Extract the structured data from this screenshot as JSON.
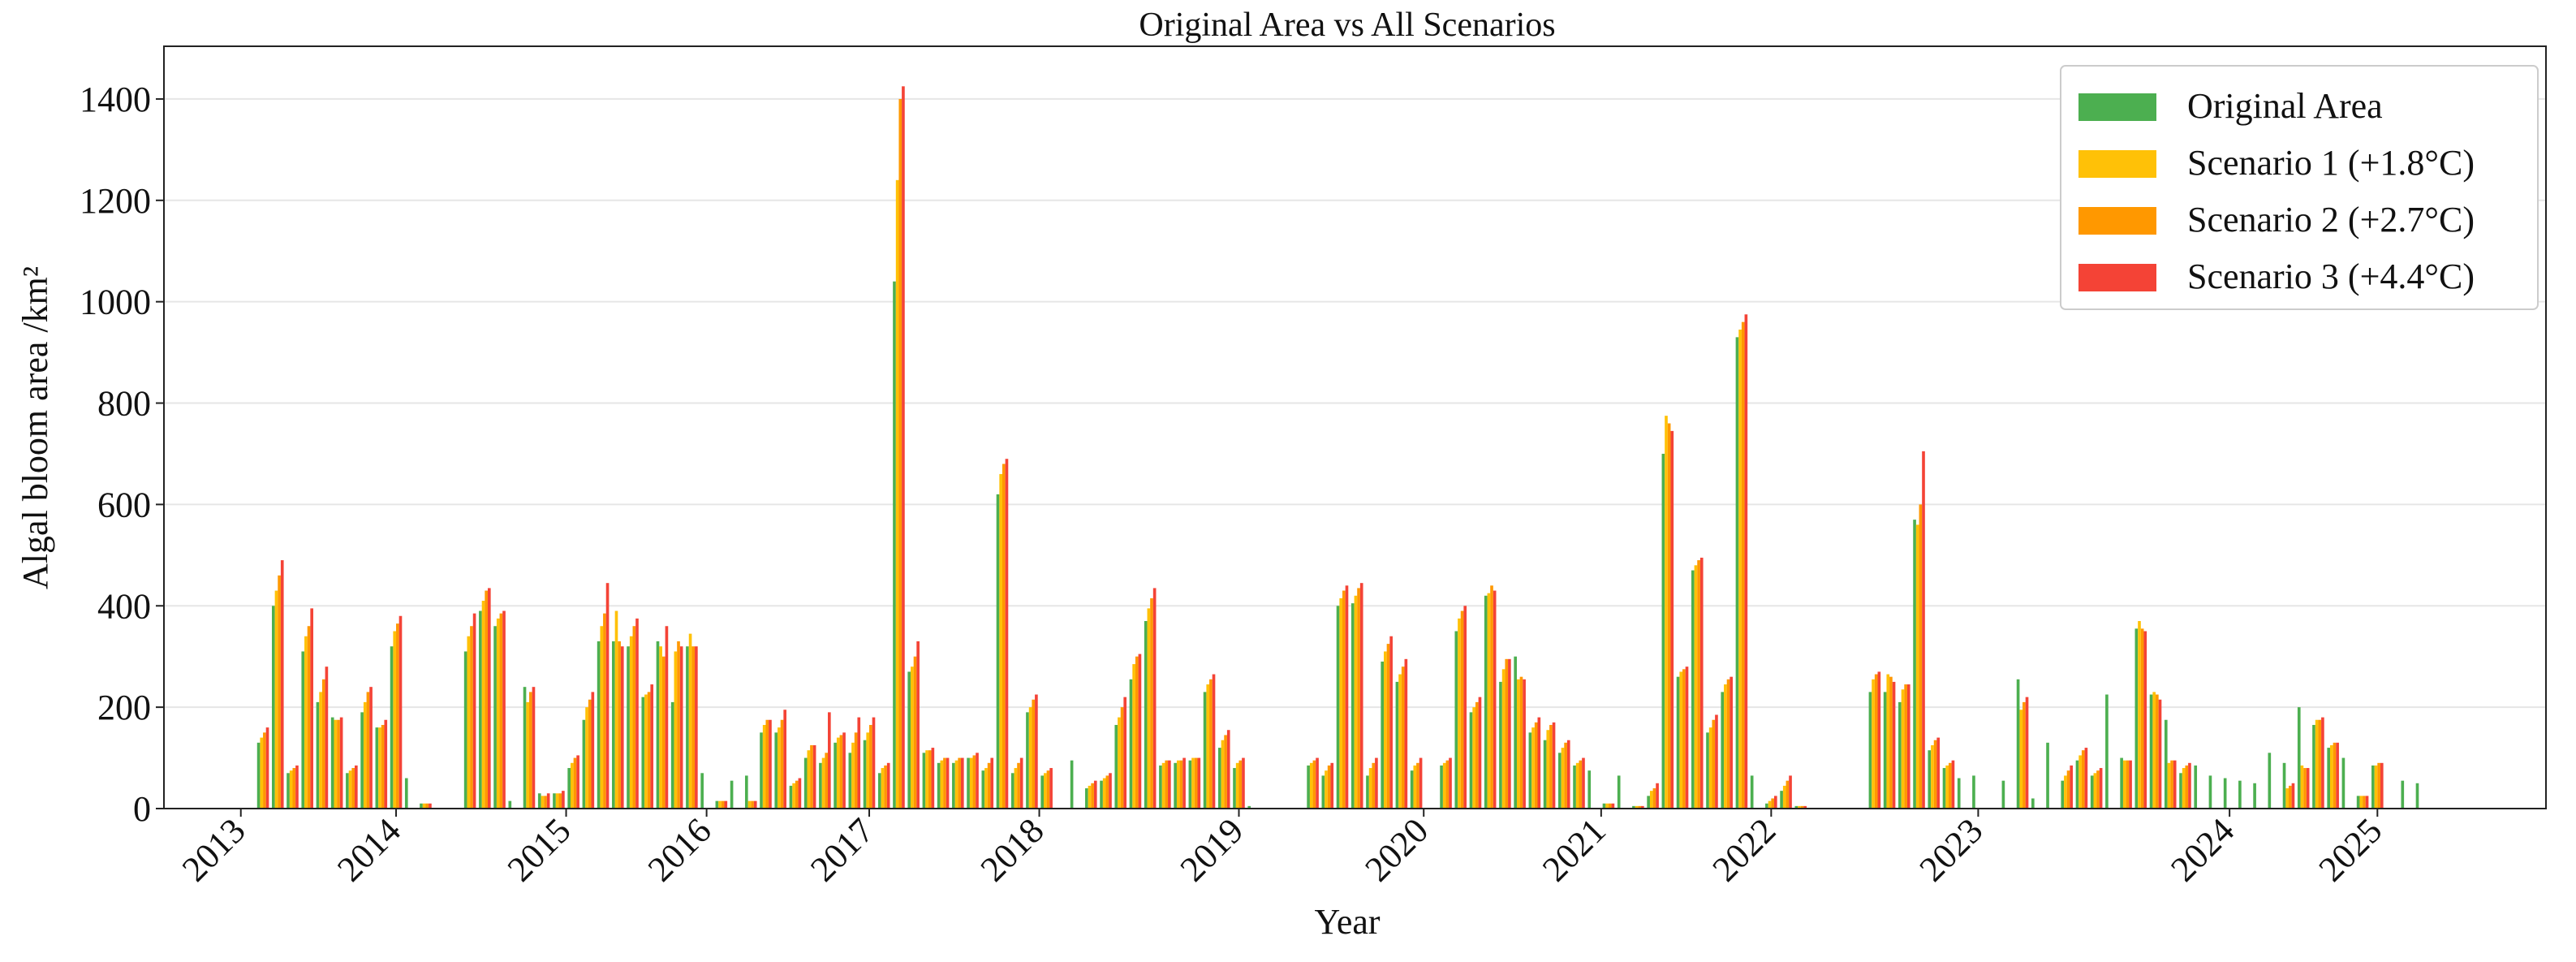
{
  "chart_data": {
    "type": "bar",
    "title": "Original Area vs All Scenarios",
    "x_label": "Year",
    "y_label": "Algal bloom area /km²",
    "categories": [
      null,
      null,
      null,
      null,
      null,
      null,
      null,
      null,
      null,
      null,
      null,
      null,
      null,
      null,
      null,
      null,
      null,
      null,
      null,
      null,
      null,
      null,
      null,
      null,
      null,
      null,
      null,
      null,
      null,
      null,
      null,
      null,
      null,
      null,
      null,
      null,
      null,
      null,
      null,
      null,
      null,
      null,
      null,
      null,
      null,
      null,
      null,
      null,
      null,
      null,
      null,
      null,
      null,
      null,
      null,
      null,
      null,
      null,
      null,
      null,
      null,
      null,
      null,
      null,
      null,
      null,
      null,
      null,
      null,
      null,
      null,
      null,
      null,
      null,
      null,
      null,
      null,
      null,
      null,
      null,
      null,
      null,
      null,
      null,
      null,
      null,
      null,
      null,
      null,
      null,
      null,
      null,
      null,
      null,
      null,
      null,
      null,
      null,
      null,
      null,
      null,
      null,
      null,
      null,
      null,
      null,
      null,
      null,
      null,
      null,
      null,
      null,
      null,
      null,
      null,
      null,
      null,
      null,
      null,
      null,
      null,
      null,
      null,
      null,
      null,
      null,
      null,
      null,
      null,
      null,
      null,
      null,
      null,
      null,
      null,
      null,
      null,
      null,
      null,
      null,
      null,
      null,
      null,
      null,
      null,
      null,
      null,
      null
    ],
    "series": [
      {
        "name": "Original Area",
        "color": "#4caf50",
        "values": [
          130,
          400,
          70,
          310,
          210,
          180,
          70,
          190,
          160,
          320,
          60,
          10,
          0,
          0,
          310,
          390,
          360,
          15,
          240,
          30,
          30,
          80,
          175,
          330,
          330,
          320,
          220,
          330,
          210,
          320,
          70,
          15,
          55,
          65,
          150,
          150,
          45,
          100,
          90,
          130,
          110,
          135,
          70,
          1040,
          270,
          110,
          90,
          90,
          100,
          75,
          620,
          70,
          190,
          65,
          0,
          95,
          40,
          55,
          165,
          255,
          370,
          85,
          90,
          95,
          230,
          120,
          80,
          5,
          0,
          0,
          0,
          85,
          65,
          400,
          405,
          65,
          290,
          250,
          75,
          0,
          85,
          350,
          190,
          420,
          250,
          300,
          150,
          135,
          110,
          85,
          75,
          10,
          65,
          5,
          25,
          700,
          260,
          470,
          150,
          230,
          930,
          65,
          10,
          35,
          5,
          0,
          0,
          0,
          0,
          230,
          230,
          210,
          570,
          115,
          80,
          60,
          65,
          0,
          55,
          255,
          20,
          130,
          55,
          95,
          65,
          225,
          100,
          355,
          225,
          175,
          70,
          85,
          65,
          60,
          55,
          50,
          110,
          90,
          200,
          165,
          120,
          100,
          25,
          85,
          0,
          55,
          50,
          0
        ]
      },
      {
        "name": "Scenario 1 (+1.8°C)",
        "color": "#ffc107",
        "values": [
          140,
          430,
          75,
          340,
          230,
          175,
          75,
          210,
          160,
          350,
          0,
          10,
          0,
          0,
          340,
          410,
          375,
          0,
          210,
          25,
          30,
          90,
          200,
          360,
          390,
          340,
          225,
          320,
          310,
          345,
          0,
          15,
          0,
          15,
          165,
          160,
          50,
          115,
          100,
          140,
          130,
          150,
          80,
          1240,
          280,
          115,
          95,
          95,
          100,
          80,
          660,
          80,
          200,
          70,
          0,
          0,
          45,
          60,
          180,
          285,
          395,
          90,
          95,
          100,
          245,
          135,
          90,
          0,
          0,
          0,
          0,
          90,
          75,
          415,
          420,
          80,
          310,
          265,
          85,
          0,
          90,
          375,
          200,
          425,
          275,
          255,
          160,
          155,
          120,
          90,
          0,
          10,
          0,
          5,
          35,
          775,
          270,
          480,
          160,
          245,
          945,
          0,
          15,
          45,
          5,
          0,
          0,
          0,
          0,
          255,
          265,
          235,
          560,
          125,
          85,
          0,
          0,
          0,
          0,
          195,
          0,
          0,
          65,
          105,
          70,
          0,
          95,
          370,
          230,
          90,
          80,
          0,
          0,
          0,
          0,
          0,
          0,
          40,
          85,
          175,
          125,
          0,
          25,
          85,
          0,
          0,
          0,
          0
        ]
      },
      {
        "name": "Scenario 2 (+2.7°C)",
        "color": "#ff9800",
        "values": [
          150,
          460,
          80,
          360,
          255,
          175,
          80,
          230,
          165,
          365,
          0,
          10,
          0,
          0,
          360,
          430,
          385,
          0,
          230,
          25,
          30,
          100,
          215,
          385,
          330,
          360,
          230,
          300,
          330,
          320,
          0,
          15,
          0,
          15,
          175,
          175,
          55,
          125,
          110,
          145,
          150,
          165,
          85,
          1400,
          300,
          115,
          100,
          100,
          105,
          90,
          680,
          90,
          215,
          75,
          0,
          0,
          50,
          65,
          200,
          300,
          415,
          95,
          95,
          100,
          255,
          145,
          95,
          0,
          0,
          0,
          0,
          95,
          85,
          430,
          435,
          90,
          325,
          280,
          90,
          0,
          95,
          390,
          210,
          440,
          295,
          260,
          170,
          165,
          130,
          95,
          0,
          10,
          0,
          5,
          40,
          760,
          275,
          490,
          175,
          255,
          960,
          0,
          20,
          55,
          5,
          0,
          0,
          0,
          0,
          265,
          260,
          245,
          600,
          135,
          90,
          0,
          0,
          0,
          0,
          210,
          0,
          0,
          75,
          115,
          75,
          0,
          95,
          355,
          225,
          95,
          85,
          0,
          0,
          0,
          0,
          0,
          0,
          45,
          80,
          175,
          130,
          0,
          25,
          90,
          0,
          0,
          0,
          0
        ]
      },
      {
        "name": "Scenario 3 (+4.4°C)",
        "color": "#f44336",
        "values": [
          160,
          490,
          85,
          395,
          280,
          180,
          85,
          240,
          175,
          380,
          0,
          10,
          0,
          0,
          385,
          435,
          390,
          0,
          240,
          30,
          35,
          105,
          230,
          445,
          320,
          375,
          245,
          360,
          320,
          320,
          0,
          15,
          0,
          15,
          175,
          195,
          60,
          125,
          190,
          150,
          180,
          180,
          90,
          1425,
          330,
          120,
          100,
          100,
          110,
          100,
          690,
          100,
          225,
          80,
          0,
          0,
          55,
          70,
          220,
          305,
          435,
          95,
          100,
          100,
          265,
          155,
          100,
          0,
          0,
          0,
          0,
          100,
          90,
          440,
          445,
          100,
          340,
          295,
          100,
          0,
          100,
          400,
          220,
          430,
          295,
          255,
          180,
          170,
          135,
          100,
          0,
          10,
          0,
          5,
          50,
          745,
          280,
          495,
          185,
          260,
          975,
          0,
          25,
          65,
          5,
          0,
          0,
          0,
          0,
          270,
          250,
          245,
          705,
          140,
          95,
          0,
          0,
          0,
          0,
          220,
          0,
          0,
          85,
          120,
          80,
          0,
          95,
          350,
          215,
          95,
          90,
          0,
          0,
          0,
          0,
          0,
          0,
          50,
          80,
          180,
          130,
          0,
          25,
          90,
          0,
          0,
          0,
          0
        ]
      }
    ],
    "xlim": [
      -6.7,
      154.4
    ],
    "xticks": [
      {
        "value": -1.5,
        "label": "2013"
      },
      {
        "value": 9,
        "label": "2014"
      },
      {
        "value": 20.5,
        "label": "2015"
      },
      {
        "value": 30,
        "label": "2016"
      },
      {
        "value": 41,
        "label": "2017"
      },
      {
        "value": 52.5,
        "label": "2018"
      },
      {
        "value": 66,
        "label": "2019"
      },
      {
        "value": 78.5,
        "label": "2020"
      },
      {
        "value": 90.5,
        "label": "2021"
      },
      {
        "value": 102,
        "label": "2022"
      },
      {
        "value": 116,
        "label": "2023"
      },
      {
        "value": 133,
        "label": "2024"
      },
      {
        "value": 143,
        "label": "2025"
      }
    ],
    "ylim": [
      0,
      1504
    ],
    "yticks": [
      0,
      200,
      400,
      600,
      800,
      1000,
      1200,
      1400
    ],
    "grid": true,
    "legend": "upper right"
  }
}
